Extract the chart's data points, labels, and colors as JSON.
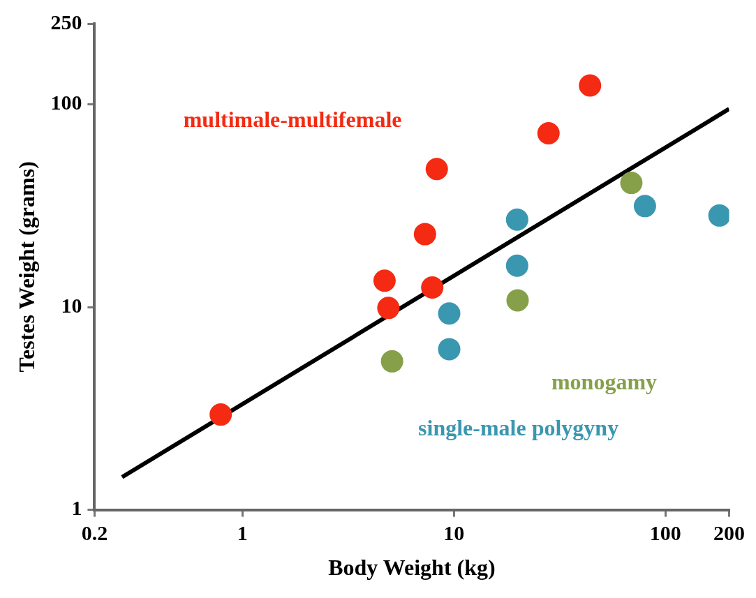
{
  "chart_data": {
    "type": "scatter",
    "xlabel": "Body Weight (kg)",
    "ylabel": "Testes Weight (grams)",
    "log": "xy",
    "xlim": [
      0.2,
      200
    ],
    "ylim": [
      1,
      250
    ],
    "xticks": [
      0.2,
      1,
      10,
      100,
      200
    ],
    "yticks": [
      1,
      10,
      100,
      250
    ],
    "grid": false,
    "legend": false,
    "marker": "circle",
    "series": [
      {
        "name": "multimale-multifemale",
        "color": "#f42a12",
        "x": [
          0.79,
          4.7,
          4.9,
          7.3,
          7.9,
          8.3,
          28,
          44
        ],
        "values": [
          2.95,
          13.5,
          9.9,
          22.9,
          12.5,
          48,
          72,
          124
        ]
      },
      {
        "name": "monogamy",
        "color": "#86a04a",
        "x": [
          5.1,
          20,
          69
        ],
        "values": [
          5.4,
          10.8,
          41
        ]
      },
      {
        "name": "single-male polygyny",
        "color": "#3a97b0",
        "x": [
          9.5,
          9.5,
          19.9,
          19.9,
          80,
          180
        ],
        "values": [
          9.3,
          6.2,
          27,
          16,
          31.5,
          28.3
        ]
      },
      {
        "type": "line",
        "marker": "none",
        "color": "#000000",
        "x": [
          0.27,
          200
        ],
        "values": [
          1.45,
          95
        ]
      }
    ]
  }
}
